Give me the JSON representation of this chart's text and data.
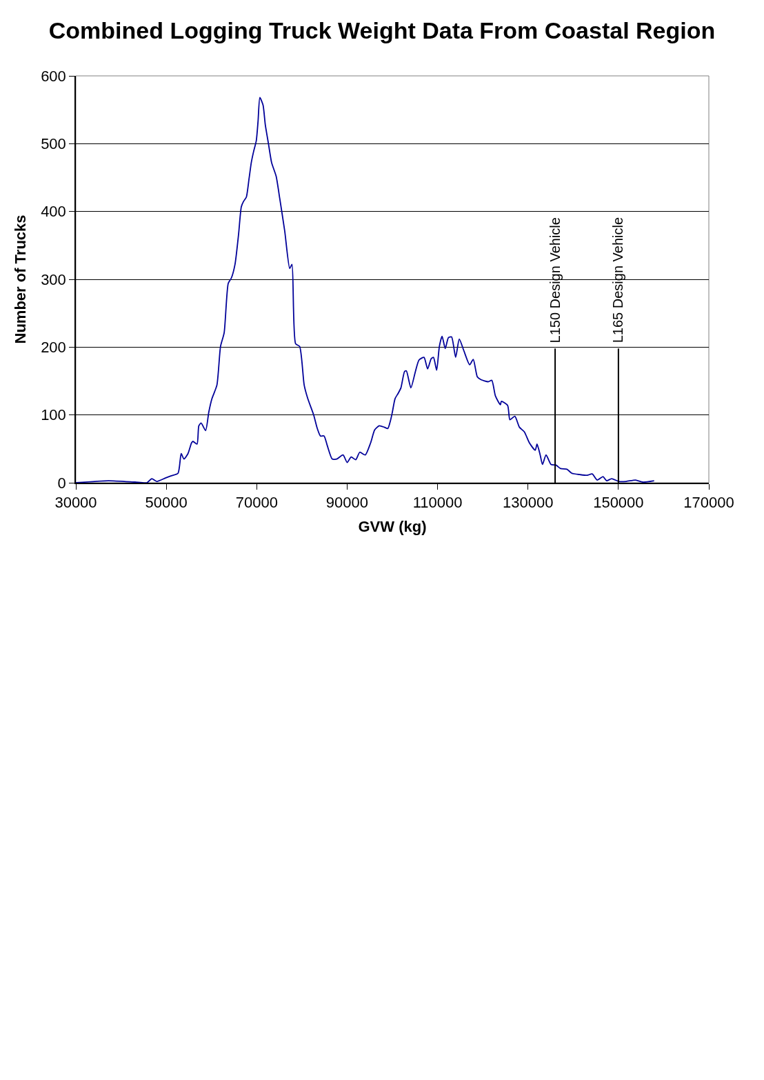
{
  "chart_data": {
    "type": "line",
    "title": "Combined Logging Truck Weight Data From Coastal Region",
    "xlabel": "GVW (kg)",
    "ylabel": "Number of Trucks",
    "x": [
      30000,
      37200,
      43100,
      45700,
      46800,
      47900,
      49800,
      51000,
      52600,
      53300,
      53900,
      54800,
      55600,
      55900,
      56800,
      57200,
      57700,
      58700,
      59400,
      60100,
      61200,
      62000,
      62800,
      63700,
      64400,
      65200,
      66000,
      66600,
      67100,
      67700,
      68300,
      68800,
      69300,
      69900,
      70300,
      70700,
      71400,
      71900,
      72600,
      73300,
      74300,
      75100,
      76200,
      77300,
      77800,
      78600,
      79500,
      80500,
      81300,
      82600,
      83400,
      84100,
      84900,
      85600,
      86700,
      87700,
      89100,
      90000,
      90900,
      91900,
      92800,
      94000,
      95200,
      96100,
      97100,
      98200,
      99000,
      99600,
      100000,
      100600,
      101300,
      101900,
      102700,
      103100,
      104100,
      105100,
      105900,
      107000,
      107800,
      108600,
      109100,
      109800,
      110400,
      111000,
      111700,
      112400,
      113100,
      114000,
      114800,
      115800,
      117100,
      117900,
      118800,
      119600,
      121200,
      122000,
      122800,
      123900,
      124100,
      125500,
      126000,
      127100,
      128100,
      129200,
      130300,
      131600,
      132000,
      132700,
      133200,
      134000,
      135100,
      136200,
      137200,
      138600,
      139700,
      141500,
      143100,
      144200,
      145300,
      146600,
      147400,
      148500,
      150100,
      151700,
      153800,
      155400,
      157900
    ],
    "series": [
      {
        "color": "#000099",
        "values": [
          0,
          3,
          1,
          0,
          6,
          2,
          7,
          10,
          14,
          43,
          35,
          43,
          59,
          61,
          57,
          84,
          88,
          77,
          104,
          124,
          144,
          201,
          221,
          294,
          302,
          322,
          367,
          407,
          415,
          421,
          448,
          472,
          488,
          504,
          533,
          568,
          557,
          528,
          500,
          472,
          452,
          419,
          371,
          316,
          322,
          205,
          201,
          144,
          124,
          100,
          80,
          69,
          69,
          55,
          35,
          35,
          41,
          30,
          38,
          34,
          45,
          41,
          59,
          78,
          84,
          82,
          80,
          92,
          104,
          124,
          132,
          140,
          164,
          165,
          140,
          164,
          181,
          185,
          168,
          183,
          185,
          166,
          201,
          216,
          198,
          214,
          215,
          185,
          212,
          195,
          174,
          182,
          156,
          152,
          149,
          151,
          128,
          115,
          120,
          114,
          93,
          98,
          82,
          75,
          59,
          48,
          57,
          41,
          27,
          41,
          27,
          26,
          21,
          20,
          14,
          12,
          11,
          13,
          4,
          9,
          3,
          6,
          2,
          2,
          4,
          1,
          3
        ]
      }
    ],
    "xlim": [
      30000,
      170000
    ],
    "xticks": [
      30000,
      50000,
      70000,
      90000,
      110000,
      130000,
      150000,
      170000
    ],
    "ylim": [
      0,
      600
    ],
    "yticks": [
      0,
      100,
      200,
      300,
      400,
      500,
      600
    ],
    "grid": "y",
    "line_style": "solid",
    "marker": "none",
    "ref_lines": [
      {
        "axis": "x",
        "value": 136000,
        "label": "L150 Design Vehicle",
        "color": "#000000"
      },
      {
        "axis": "x",
        "value": 150000,
        "label": "L165 Design Vehicle",
        "color": "#000000"
      }
    ]
  }
}
